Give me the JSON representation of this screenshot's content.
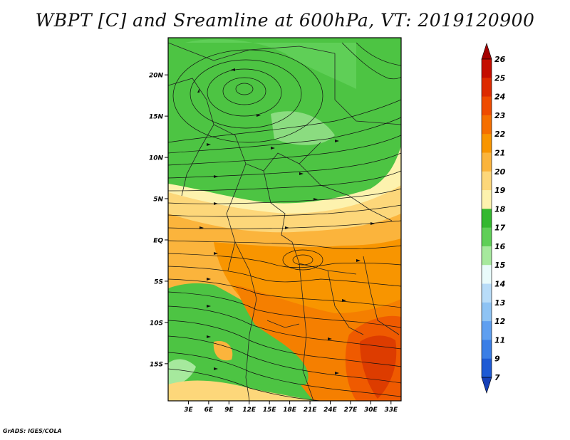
{
  "title": "WBPT [C] and Sreamline at 600hPa, VT: 2019120900",
  "credit": "GrADS: IGES/COLA",
  "map": {
    "lat_labels": [
      "20N",
      "15N",
      "10N",
      "5N",
      "EQ",
      "5S",
      "10S",
      "15S"
    ],
    "lon_labels": [
      "3E",
      "6E",
      "9E",
      "12E",
      "15E",
      "18E",
      "21E",
      "24E",
      "27E",
      "30E",
      "33E"
    ],
    "lat_range": [
      -19.5,
      24.5
    ],
    "lon_range": [
      0,
      34.5
    ]
  },
  "colorbar": {
    "levels": [
      "26",
      "25",
      "24",
      "23",
      "22",
      "21",
      "20",
      "19",
      "18",
      "17",
      "16",
      "15",
      "14",
      "13",
      "12",
      "11",
      "9",
      "7"
    ],
    "colors": [
      "#a50000",
      "#c40d00",
      "#dd2a00",
      "#ef4b00",
      "#f56f00",
      "#f89500",
      "#fbb43c",
      "#fdd77a",
      "#fdf2ae",
      "#33b82f",
      "#5fcf57",
      "#a6e99d",
      "#e9fbfb",
      "#b8dcf8",
      "#8ec3f4",
      "#5f9ff0",
      "#3a7ee6",
      "#1d5ad4",
      "#1540b8"
    ]
  }
}
